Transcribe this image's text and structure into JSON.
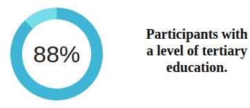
{
  "chart_data": {
    "type": "donut",
    "title": "Participants with a level of tertiary education.",
    "values": [
      88,
      12
    ],
    "value_labels": [
      "88%",
      null
    ],
    "colors": [
      "#3fb6d6",
      "#74dde7"
    ]
  }
}
